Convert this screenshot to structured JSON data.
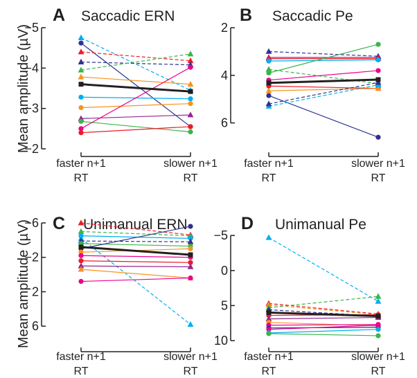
{
  "figure": {
    "ylabel": "Mean amplitude (µV)"
  },
  "chart_data": [
    {
      "type": "line",
      "panel": "A",
      "title": "Saccadic ERN",
      "y_inverted": true,
      "ylim": [
        -5,
        -2
      ],
      "yticks": [
        -5,
        -4,
        -3,
        -2
      ],
      "categories": [
        [
          "faster n+1",
          "RT"
        ],
        [
          "slower n+1",
          "RT"
        ]
      ],
      "series": [
        {
          "color": "#00aeef",
          "marker": "triangle",
          "dashed": true,
          "values": [
            -4.75,
            -3.45
          ]
        },
        {
          "color": "#2e3192",
          "marker": "circle",
          "dashed": false,
          "values": [
            -4.62,
            -2.55
          ]
        },
        {
          "color": "#ed1c24",
          "marker": "triangle",
          "dashed": true,
          "values": [
            -4.4,
            -4.18
          ]
        },
        {
          "color": "#2e3192",
          "marker": "triangle",
          "dashed": true,
          "values": [
            -4.15,
            -4.08
          ]
        },
        {
          "color": "#39b54a",
          "marker": "triangle",
          "dashed": true,
          "values": [
            -3.95,
            -4.35
          ]
        },
        {
          "color": "#f7941d",
          "marker": "triangle",
          "dashed": false,
          "values": [
            -3.78,
            -3.6
          ]
        },
        {
          "color": "#231f20",
          "marker": "square",
          "dashed": false,
          "bold": true,
          "values": [
            -3.6,
            -3.42
          ]
        },
        {
          "color": "#00aeef",
          "marker": "circle",
          "dashed": false,
          "values": [
            -3.28,
            -3.24
          ]
        },
        {
          "color": "#f7941d",
          "marker": "circle",
          "dashed": false,
          "values": [
            -3.02,
            -3.12
          ]
        },
        {
          "color": "#92278f",
          "marker": "triangle",
          "dashed": false,
          "values": [
            -2.75,
            -2.84
          ]
        },
        {
          "color": "#39b54a",
          "marker": "circle",
          "dashed": false,
          "values": [
            -2.68,
            -2.42
          ]
        },
        {
          "color": "#ec008c",
          "marker": "circle",
          "dashed": false,
          "values": [
            -2.5,
            -4.02
          ]
        },
        {
          "color": "#ed1c24",
          "marker": "circle",
          "dashed": false,
          "values": [
            -2.4,
            -2.55
          ]
        }
      ]
    },
    {
      "type": "line",
      "panel": "B",
      "title": "Saccadic Pe",
      "y_inverted": false,
      "ylim": [
        2,
        7
      ],
      "yticks": [
        2,
        4,
        6
      ],
      "categories": [
        [
          "faster n+1",
          "RT"
        ],
        [
          "slower n+1",
          "RT"
        ]
      ],
      "series": [
        {
          "color": "#2e3192",
          "marker": "triangle",
          "dashed": true,
          "values": [
            3.0,
            3.2
          ]
        },
        {
          "color": "#92278f",
          "marker": "triangle",
          "dashed": false,
          "values": [
            3.25,
            3.25
          ]
        },
        {
          "color": "#ed1c24",
          "marker": "triangle",
          "dashed": false,
          "values": [
            3.3,
            3.3
          ]
        },
        {
          "color": "#00aeef",
          "marker": "circle",
          "dashed": false,
          "values": [
            3.4,
            3.35
          ]
        },
        {
          "color": "#39b54a",
          "marker": "triangle",
          "dashed": true,
          "values": [
            3.75,
            4.35
          ]
        },
        {
          "color": "#39b54a",
          "marker": "circle",
          "dashed": false,
          "values": [
            3.9,
            2.7
          ]
        },
        {
          "color": "#ec008c",
          "marker": "circle",
          "dashed": false,
          "values": [
            4.2,
            3.8
          ]
        },
        {
          "color": "#231f20",
          "marker": "square",
          "dashed": false,
          "bold": true,
          "values": [
            4.32,
            4.18
          ]
        },
        {
          "color": "#ed1c24",
          "marker": "circle",
          "dashed": false,
          "values": [
            4.45,
            4.55
          ]
        },
        {
          "color": "#f7941d",
          "marker": "triangle",
          "dashed": false,
          "values": [
            4.65,
            4.55
          ]
        },
        {
          "color": "#2e3192",
          "marker": "circle",
          "dashed": false,
          "values": [
            4.85,
            6.6
          ]
        },
        {
          "color": "#00aeef",
          "marker": "triangle",
          "dashed": true,
          "values": [
            5.3,
            4.4
          ]
        },
        {
          "color": "#2e3192",
          "marker": "triangle",
          "dashed": true,
          "values": [
            5.2,
            4.3
          ]
        }
      ]
    },
    {
      "type": "line",
      "panel": "C",
      "title": "Unimanual ERN",
      "y_inverted": true,
      "ylim": [
        -6,
        8
      ],
      "yticks": [
        -6,
        -2,
        2,
        6
      ],
      "categories": [
        [
          "faster n+1",
          "RT"
        ],
        [
          "slower n+1",
          "RT"
        ]
      ],
      "series": [
        {
          "color": "#ed1c24",
          "marker": "triangle",
          "dashed": true,
          "values": [
            -6.0,
            -4.6
          ]
        },
        {
          "color": "#39b54a",
          "marker": "triangle",
          "dashed": true,
          "values": [
            -5.0,
            -4.5
          ]
        },
        {
          "color": "#00aeef",
          "marker": "circle",
          "dashed": false,
          "values": [
            -4.5,
            -4.2
          ]
        },
        {
          "color": "#00aeef",
          "marker": "triangle",
          "dashed": true,
          "values": [
            -4.2,
            5.8
          ]
        },
        {
          "color": "#2e3192",
          "marker": "triangle",
          "dashed": true,
          "values": [
            -3.9,
            -3.8
          ]
        },
        {
          "color": "#39b54a",
          "marker": "circle",
          "dashed": false,
          "values": [
            -3.6,
            -3.3
          ]
        },
        {
          "color": "#231f20",
          "marker": "square",
          "dashed": false,
          "bold": true,
          "values": [
            -3.2,
            -2.3
          ]
        },
        {
          "color": "#2e3192",
          "marker": "circle",
          "dashed": false,
          "values": [
            -3.0,
            -5.6
          ]
        },
        {
          "color": "#f7941d",
          "marker": "circle",
          "dashed": false,
          "values": [
            -2.6,
            -3.0
          ]
        },
        {
          "color": "#ec008c",
          "marker": "circle",
          "dashed": false,
          "values": [
            -2.2,
            -2.0
          ]
        },
        {
          "color": "#ed1c24",
          "marker": "circle",
          "dashed": false,
          "values": [
            -1.6,
            -1.4
          ]
        },
        {
          "color": "#92278f",
          "marker": "triangle",
          "dashed": false,
          "values": [
            -1.0,
            -0.9
          ]
        },
        {
          "color": "#f7941d",
          "marker": "triangle",
          "dashed": false,
          "values": [
            -0.6,
            0.4
          ]
        },
        {
          "color": "#ec008c",
          "marker": "circle",
          "dashed": false,
          "values": [
            0.8,
            0.4
          ]
        }
      ]
    },
    {
      "type": "line",
      "panel": "D",
      "title": "Unimanual Pe",
      "y_inverted": false,
      "ylim": [
        -6,
        10
      ],
      "yticks": [
        -5,
        0,
        5,
        10
      ],
      "categories": [
        [
          "faster n+1",
          "RT"
        ],
        [
          "slower n+1",
          "RT"
        ]
      ],
      "series": [
        {
          "color": "#00aeef",
          "marker": "triangle",
          "dashed": true,
          "values": [
            -4.7,
            4.4
          ]
        },
        {
          "color": "#ed1c24",
          "marker": "triangle",
          "dashed": true,
          "values": [
            4.7,
            6.2
          ]
        },
        {
          "color": "#f7941d",
          "marker": "triangle",
          "dashed": true,
          "values": [
            4.9,
            6.3
          ]
        },
        {
          "color": "#39b54a",
          "marker": "triangle",
          "dashed": true,
          "values": [
            5.3,
            3.7
          ]
        },
        {
          "color": "#2e3192",
          "marker": "triangle",
          "dashed": true,
          "values": [
            5.6,
            6.5
          ]
        },
        {
          "color": "#231f20",
          "marker": "square",
          "dashed": false,
          "bold": true,
          "values": [
            6.0,
            6.5
          ]
        },
        {
          "color": "#ed1c24",
          "marker": "circle",
          "dashed": false,
          "values": [
            6.4,
            6.3
          ]
        },
        {
          "color": "#92278f",
          "marker": "triangle",
          "dashed": false,
          "values": [
            6.9,
            6.7
          ]
        },
        {
          "color": "#f7941d",
          "marker": "circle",
          "dashed": false,
          "values": [
            7.4,
            7.9
          ]
        },
        {
          "color": "#ec008c",
          "marker": "circle",
          "dashed": false,
          "values": [
            7.8,
            7.7
          ]
        },
        {
          "color": "#2e3192",
          "marker": "circle",
          "dashed": false,
          "values": [
            8.2,
            8.1
          ]
        },
        {
          "color": "#ec008c",
          "marker": "circle",
          "dashed": false,
          "values": [
            8.4,
            7.8
          ]
        },
        {
          "color": "#00aeef",
          "marker": "circle",
          "dashed": false,
          "values": [
            8.9,
            8.4
          ]
        },
        {
          "color": "#39b54a",
          "marker": "circle",
          "dashed": false,
          "values": [
            9.0,
            9.3
          ]
        }
      ]
    }
  ]
}
